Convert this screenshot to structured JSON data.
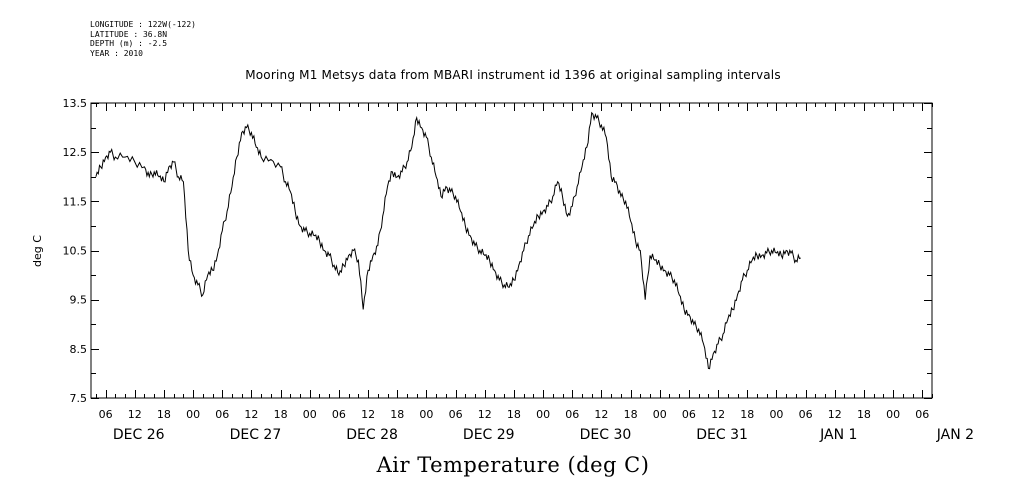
{
  "meta": {
    "longitude": "LONGITUDE : 122W(-122)",
    "latitude": "LATITUDE : 36.8N",
    "depth": "DEPTH (m) : -2.5",
    "year": "YEAR : 2010"
  },
  "chart_data": {
    "type": "line",
    "title": "Mooring M1 Metsys data from MBARI instrument id 1396 at original sampling intervals",
    "xlabel": "Air Temperature (deg C)",
    "ylabel": "deg C",
    "ylim": [
      7.5,
      13.5
    ],
    "yticks": [
      "7.5",
      "8.5",
      "9.5",
      "10.5",
      "11.5",
      "12.5",
      "13.5"
    ],
    "x_units": "hours since 2010-12-26 00:00",
    "xlim": [
      -21,
      152
    ],
    "hour_tick_labels": [
      "06",
      "12",
      "18",
      "00"
    ],
    "day_labels": [
      "DEC 26",
      "DEC 27",
      "DEC 28",
      "DEC 29",
      "DEC 30",
      "DEC 31",
      "JAN  1",
      "JAN  2"
    ],
    "grid": false,
    "series": [
      {
        "color": "#000000",
        "points": [
          [
            2,
            12.0
          ],
          [
            3,
            12.2
          ],
          [
            4,
            12.4
          ],
          [
            5,
            12.5
          ],
          [
            6,
            12.4
          ],
          [
            8,
            12.4
          ],
          [
            10,
            12.3
          ],
          [
            12,
            12.2
          ],
          [
            13,
            12.0
          ],
          [
            14,
            12.1
          ],
          [
            15,
            12.0
          ],
          [
            16,
            11.9
          ],
          [
            17,
            12.2
          ],
          [
            18,
            12.3
          ],
          [
            19,
            12.0
          ],
          [
            20,
            11.9
          ],
          [
            21,
            10.5
          ],
          [
            22,
            10.0
          ],
          [
            23,
            9.8
          ],
          [
            24,
            9.6
          ],
          [
            25,
            10.0
          ],
          [
            26,
            10.1
          ],
          [
            27,
            10.4
          ],
          [
            28,
            10.9
          ],
          [
            29,
            11.3
          ],
          [
            30,
            11.8
          ],
          [
            31,
            12.4
          ],
          [
            32,
            12.9
          ],
          [
            33,
            13.0
          ],
          [
            34,
            12.9
          ],
          [
            35,
            12.6
          ],
          [
            36,
            12.4
          ],
          [
            38,
            12.35
          ],
          [
            40,
            12.2
          ],
          [
            41,
            11.9
          ],
          [
            42,
            11.7
          ],
          [
            43,
            11.3
          ],
          [
            44,
            11.0
          ],
          [
            45,
            10.9
          ],
          [
            46,
            10.85
          ],
          [
            47,
            10.8
          ],
          [
            48,
            10.7
          ],
          [
            49,
            10.5
          ],
          [
            50,
            10.4
          ],
          [
            51,
            10.2
          ],
          [
            52,
            10.0
          ],
          [
            53,
            10.2
          ],
          [
            54,
            10.4
          ],
          [
            55,
            10.5
          ],
          [
            56,
            10.3
          ],
          [
            57,
            9.3
          ],
          [
            58,
            10.1
          ],
          [
            59,
            10.4
          ],
          [
            60,
            10.6
          ],
          [
            61,
            11.2
          ],
          [
            62,
            11.8
          ],
          [
            63,
            12.1
          ],
          [
            64,
            12.0
          ],
          [
            65,
            12.1
          ],
          [
            66,
            12.3
          ],
          [
            67,
            12.6
          ],
          [
            68,
            13.2
          ],
          [
            69,
            13.0
          ],
          [
            70,
            12.8
          ],
          [
            71,
            12.4
          ],
          [
            72,
            12.0
          ],
          [
            73,
            11.6
          ],
          [
            74,
            11.8
          ],
          [
            75,
            11.7
          ],
          [
            76,
            11.6
          ],
          [
            77,
            11.3
          ],
          [
            78,
            11.0
          ],
          [
            79,
            10.8
          ],
          [
            80,
            10.6
          ],
          [
            81,
            10.5
          ],
          [
            82,
            10.4
          ],
          [
            83,
            10.3
          ],
          [
            84,
            10.1
          ],
          [
            85,
            9.9
          ],
          [
            86,
            9.8
          ],
          [
            87,
            9.75
          ],
          [
            88,
            9.9
          ],
          [
            89,
            10.2
          ],
          [
            90,
            10.5
          ],
          [
            91,
            10.8
          ],
          [
            92,
            11.0
          ],
          [
            93,
            11.2
          ],
          [
            94,
            11.3
          ],
          [
            95,
            11.4
          ],
          [
            96,
            11.6
          ],
          [
            97,
            11.9
          ],
          [
            98,
            11.6
          ],
          [
            99,
            11.2
          ],
          [
            100,
            11.4
          ],
          [
            101,
            11.8
          ],
          [
            102,
            12.2
          ],
          [
            103,
            12.6
          ],
          [
            104,
            13.3
          ],
          [
            105,
            13.2
          ],
          [
            106,
            13.05
          ],
          [
            107,
            12.8
          ],
          [
            108,
            12.0
          ],
          [
            109,
            11.9
          ],
          [
            110,
            11.6
          ],
          [
            111,
            11.5
          ],
          [
            112,
            11.1
          ],
          [
            113,
            10.7
          ],
          [
            114,
            10.5
          ],
          [
            115,
            9.5
          ],
          [
            116,
            10.4
          ],
          [
            117,
            10.3
          ],
          [
            118,
            10.2
          ],
          [
            119,
            10.1
          ],
          [
            120,
            10.0
          ],
          [
            121,
            9.9
          ],
          [
            122,
            9.6
          ],
          [
            123,
            9.3
          ],
          [
            124,
            9.2
          ],
          [
            125,
            9.0
          ],
          [
            126,
            8.9
          ],
          [
            127,
            8.6
          ],
          [
            128,
            8.1
          ],
          [
            129,
            8.4
          ],
          [
            130,
            8.6
          ],
          [
            131,
            8.8
          ],
          [
            132,
            9.1
          ],
          [
            133,
            9.3
          ],
          [
            134,
            9.6
          ],
          [
            135,
            9.9
          ],
          [
            136,
            10.1
          ],
          [
            137,
            10.3
          ],
          [
            138,
            10.4
          ],
          [
            139,
            10.4
          ],
          [
            140,
            10.45
          ],
          [
            141,
            10.5
          ],
          [
            142,
            10.45
          ],
          [
            143,
            10.4
          ],
          [
            144,
            10.5
          ],
          [
            145,
            10.45
          ],
          [
            146,
            10.3
          ],
          [
            147,
            10.35
          ]
        ]
      }
    ]
  }
}
